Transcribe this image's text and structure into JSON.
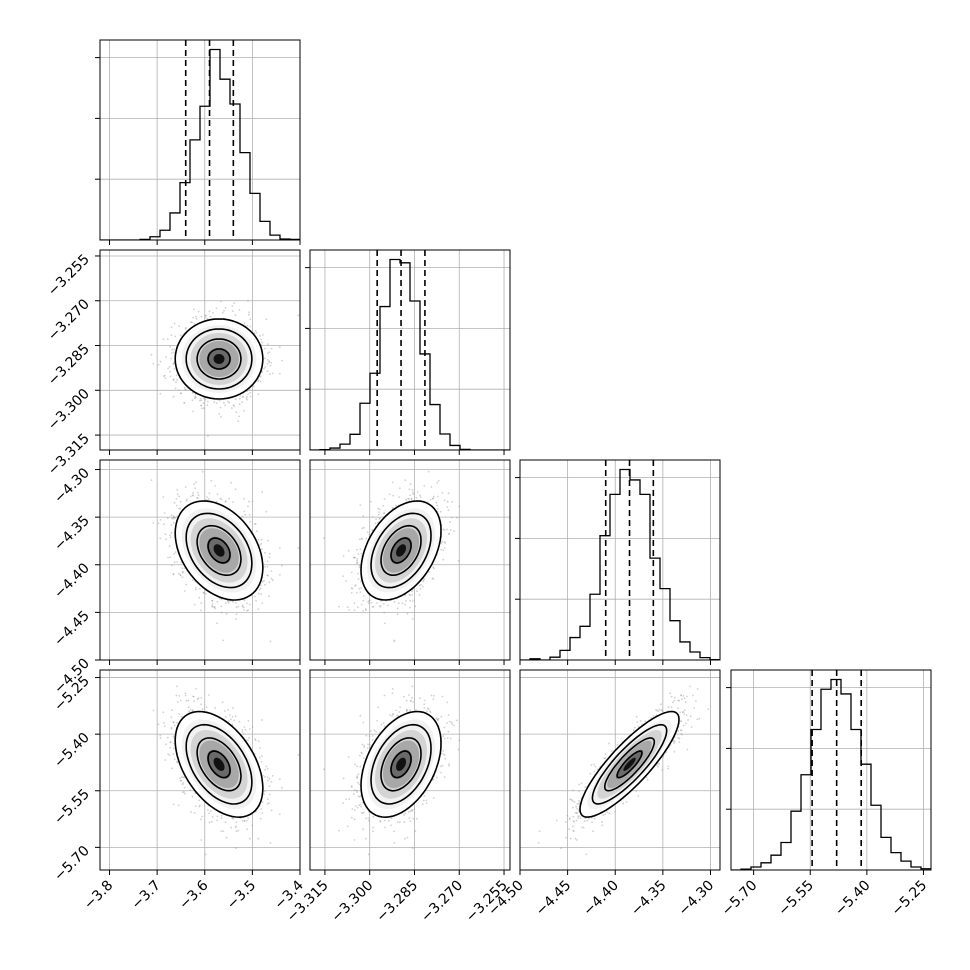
{
  "chart_data": {
    "type": "corner",
    "title": "",
    "parameters": [
      {
        "mean": -3.57,
        "sd": 0.046,
        "lim": [
          -3.82,
          -3.4
        ],
        "ticks": [
          -3.8,
          -3.7,
          -3.6,
          -3.5,
          -3.4
        ],
        "tick_labels": [
          "−3.8",
          "−3.7",
          "−3.6",
          "−3.5",
          "−3.4"
        ],
        "quantiles": [
          -3.64,
          -3.59,
          -3.54
        ]
      },
      {
        "mean": -3.2895,
        "sd": 0.0067,
        "lim": [
          -3.32,
          -3.253
        ],
        "ticks": [
          -3.315,
          -3.3,
          -3.285,
          -3.27,
          -3.255
        ],
        "tick_labels": [
          "−3.315",
          "−3.300",
          "−3.285",
          "−3.270",
          "−3.255"
        ],
        "quantiles": [
          -3.2975,
          -3.2895,
          -3.2815
        ]
      },
      {
        "mean": -4.385,
        "sd": 0.026,
        "lim": [
          -4.5,
          -4.29
        ],
        "ticks": [
          -4.5,
          -4.45,
          -4.4,
          -4.35,
          -4.3
        ],
        "tick_labels": [
          "−4.50",
          "−4.45",
          "−4.40",
          "−4.35",
          "−4.30"
        ],
        "quantiles": [
          -4.41,
          -4.385,
          -4.36
        ]
      },
      {
        "mean": -5.48,
        "sd": 0.07,
        "lim": [
          -5.76,
          -5.23
        ],
        "ticks": [
          -5.7,
          -5.55,
          -5.4,
          -5.25
        ],
        "tick_labels": [
          "−5.70",
          "−5.55",
          "−5.40",
          "−5.25"
        ],
        "quantiles": [
          -5.545,
          -5.48,
          -5.415
        ]
      }
    ],
    "correlations": [
      [
        1.0,
        0.0,
        -0.35,
        -0.45
      ],
      [
        0.0,
        1.0,
        0.4,
        0.4
      ],
      [
        -0.35,
        0.4,
        1.0,
        0.85
      ],
      [
        -0.45,
        0.4,
        0.85,
        1.0
      ]
    ],
    "histogram_bins": 20,
    "contour_levels_sigma": [
      0.5,
      1.0,
      1.5,
      2.0
    ],
    "grid": true,
    "xlabel": "",
    "ylabel": ""
  }
}
